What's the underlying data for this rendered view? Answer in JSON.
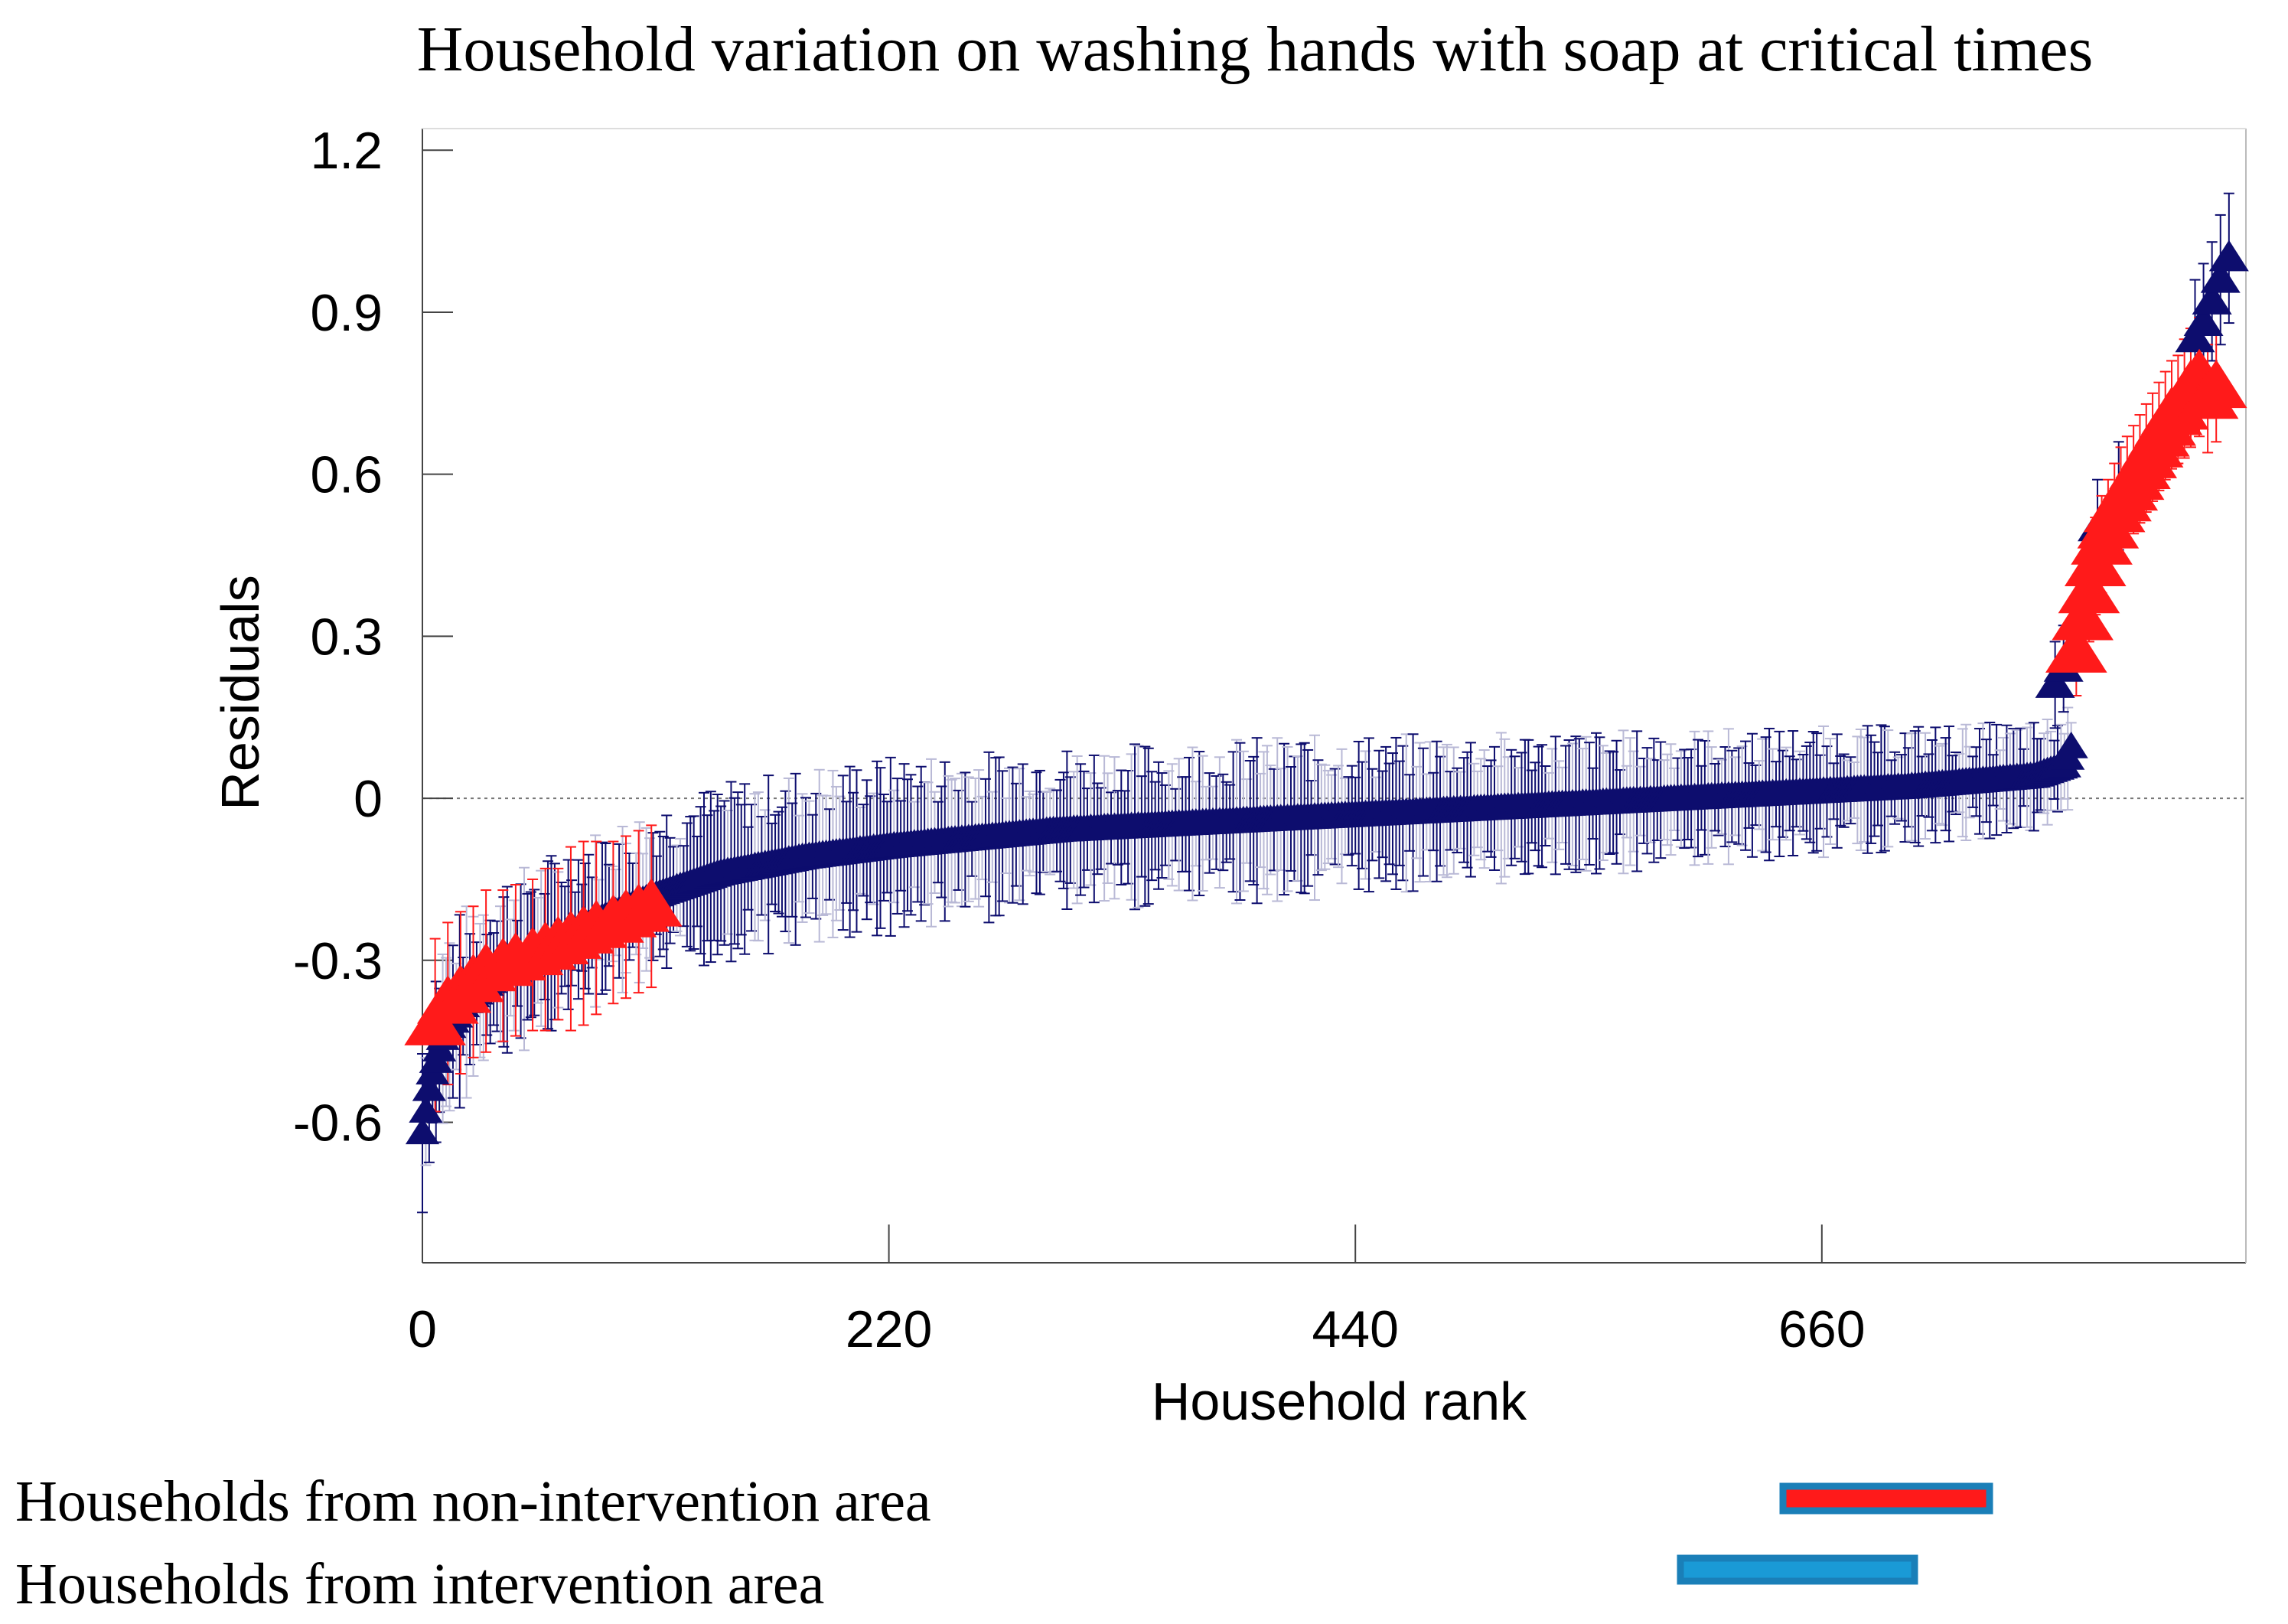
{
  "chart_data": {
    "type": "scatter",
    "title": "Household variation on washing hands with soap at critical times",
    "xlabel": "Household rank",
    "ylabel": "Residuals",
    "xlim": [
      0,
      860
    ],
    "ylim": [
      -0.86,
      1.24
    ],
    "x_ticks": [
      0,
      220,
      440,
      660
    ],
    "x_tick_labels": [
      "0",
      "220",
      "440",
      "660"
    ],
    "y_ticks": [
      -0.6,
      -0.3,
      0,
      0.3,
      0.6,
      0.9,
      1.2
    ],
    "y_tick_labels": [
      "-0.6",
      "-0.3",
      "0",
      "0.3",
      "0.6",
      "0.9",
      "1.2"
    ],
    "reference_line": 0,
    "marker": "triangle-up",
    "error_bars": true,
    "series": [
      {
        "name": "Households from non-intervention area",
        "color": "#ff1a1a",
        "points": [
          {
            "x": 6,
            "y": -0.42,
            "err": 0.16
          },
          {
            "x": 12,
            "y": -0.38,
            "err": 0.15
          },
          {
            "x": 18,
            "y": -0.36,
            "err": 0.15
          },
          {
            "x": 24,
            "y": -0.34,
            "err": 0.14
          },
          {
            "x": 30,
            "y": -0.32,
            "err": 0.15
          },
          {
            "x": 38,
            "y": -0.31,
            "err": 0.14
          },
          {
            "x": 44,
            "y": -0.3,
            "err": 0.14
          },
          {
            "x": 52,
            "y": -0.29,
            "err": 0.14
          },
          {
            "x": 58,
            "y": -0.28,
            "err": 0.15
          },
          {
            "x": 64,
            "y": -0.27,
            "err": 0.14
          },
          {
            "x": 70,
            "y": -0.26,
            "err": 0.17
          },
          {
            "x": 76,
            "y": -0.25,
            "err": 0.17
          },
          {
            "x": 82,
            "y": -0.24,
            "err": 0.16
          },
          {
            "x": 90,
            "y": -0.23,
            "err": 0.15
          },
          {
            "x": 96,
            "y": -0.22,
            "err": 0.15
          },
          {
            "x": 102,
            "y": -0.21,
            "err": 0.15
          },
          {
            "x": 108,
            "y": -0.2,
            "err": 0.15
          },
          {
            "x": 780,
            "y": 0.27,
            "err": 0.08
          },
          {
            "x": 783,
            "y": 0.33,
            "err": 0.08
          },
          {
            "x": 786,
            "y": 0.38,
            "err": 0.09
          },
          {
            "x": 789,
            "y": 0.43,
            "err": 0.09
          },
          {
            "x": 792,
            "y": 0.47,
            "err": 0.09
          },
          {
            "x": 795,
            "y": 0.5,
            "err": 0.09
          },
          {
            "x": 798,
            "y": 0.53,
            "err": 0.09
          },
          {
            "x": 801,
            "y": 0.55,
            "err": 0.1
          },
          {
            "x": 804,
            "y": 0.57,
            "err": 0.1
          },
          {
            "x": 807,
            "y": 0.59,
            "err": 0.1
          },
          {
            "x": 810,
            "y": 0.61,
            "err": 0.1
          },
          {
            "x": 813,
            "y": 0.63,
            "err": 0.1
          },
          {
            "x": 816,
            "y": 0.65,
            "err": 0.1
          },
          {
            "x": 819,
            "y": 0.67,
            "err": 0.1
          },
          {
            "x": 822,
            "y": 0.69,
            "err": 0.1
          },
          {
            "x": 825,
            "y": 0.71,
            "err": 0.1
          },
          {
            "x": 828,
            "y": 0.72,
            "err": 0.1
          },
          {
            "x": 831,
            "y": 0.74,
            "err": 0.11
          },
          {
            "x": 834,
            "y": 0.76,
            "err": 0.11
          },
          {
            "x": 838,
            "y": 0.78,
            "err": 0.11
          },
          {
            "x": 842,
            "y": 0.74,
            "err": 0.1
          },
          {
            "x": 846,
            "y": 0.76,
            "err": 0.1
          }
        ]
      },
      {
        "name": "Households from intervention area",
        "color": "#0d0d6e",
        "legend_color": "#1a9ad6",
        "curve": [
          {
            "x": 0,
            "y": -0.62,
            "err": 0.16
          },
          {
            "x": 4,
            "y": -0.52,
            "err": 0.15
          },
          {
            "x": 10,
            "y": -0.44,
            "err": 0.15
          },
          {
            "x": 20,
            "y": -0.38,
            "err": 0.14
          },
          {
            "x": 35,
            "y": -0.33,
            "err": 0.14
          },
          {
            "x": 55,
            "y": -0.28,
            "err": 0.13
          },
          {
            "x": 80,
            "y": -0.23,
            "err": 0.13
          },
          {
            "x": 110,
            "y": -0.18,
            "err": 0.13
          },
          {
            "x": 140,
            "y": -0.14,
            "err": 0.13
          },
          {
            "x": 180,
            "y": -0.11,
            "err": 0.13
          },
          {
            "x": 220,
            "y": -0.09,
            "err": 0.13
          },
          {
            "x": 300,
            "y": -0.06,
            "err": 0.12
          },
          {
            "x": 400,
            "y": -0.04,
            "err": 0.12
          },
          {
            "x": 500,
            "y": -0.02,
            "err": 0.11
          },
          {
            "x": 600,
            "y": 0.0,
            "err": 0.1
          },
          {
            "x": 700,
            "y": 0.02,
            "err": 0.09
          },
          {
            "x": 760,
            "y": 0.04,
            "err": 0.08
          },
          {
            "x": 775,
            "y": 0.06,
            "err": 0.08
          },
          {
            "x": 778,
            "y": 0.1,
            "err": 0.08
          }
        ],
        "points": [
          {
            "x": 770,
            "y": 0.21,
            "err": 0.08
          },
          {
            "x": 774,
            "y": 0.24,
            "err": 0.08
          },
          {
            "x": 790,
            "y": 0.5,
            "err": 0.09
          },
          {
            "x": 800,
            "y": 0.56,
            "err": 0.1
          },
          {
            "x": 836,
            "y": 0.85,
            "err": 0.11
          },
          {
            "x": 840,
            "y": 0.88,
            "err": 0.11
          },
          {
            "x": 844,
            "y": 0.92,
            "err": 0.11
          },
          {
            "x": 848,
            "y": 0.96,
            "err": 0.12
          },
          {
            "x": 852,
            "y": 1.0,
            "err": 0.12
          }
        ]
      }
    ]
  },
  "legend": {
    "items": [
      {
        "label": "Households from non-intervention area",
        "fill": "#ff1a1a",
        "border": "#1a7fb8"
      },
      {
        "label": "Households from intervention area",
        "fill": "#1a9ad6",
        "border": "#1a7fb8"
      }
    ]
  }
}
